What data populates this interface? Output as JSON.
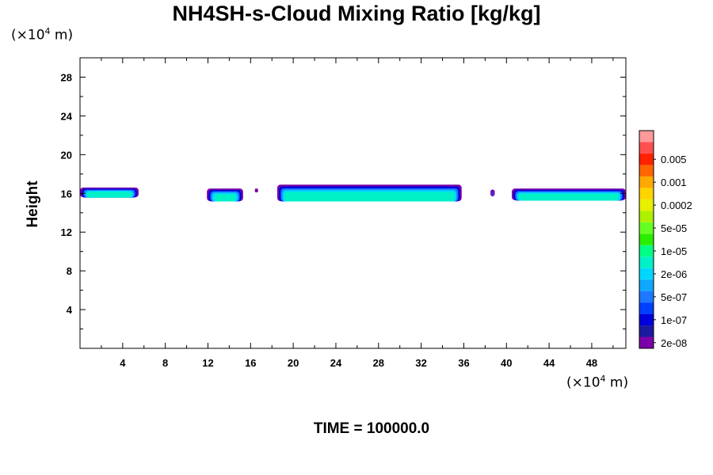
{
  "chart_data": {
    "type": "heatmap",
    "title": "NH4SH-s-Cloud Mixing Ratio [kg/kg]",
    "ylabel": "Height",
    "xlabel": "",
    "x_unit": {
      "prefix": "(×10",
      "exp": "4",
      "suffix": " m)"
    },
    "y_unit": {
      "prefix": "(×10",
      "exp": "4",
      "suffix": " m)"
    },
    "xlim": [
      0,
      51.2
    ],
    "ylim": [
      0,
      30
    ],
    "x_ticks": [
      4,
      8,
      12,
      16,
      20,
      24,
      28,
      32,
      36,
      40,
      44,
      48
    ],
    "x_tick_labels": [
      "4",
      "8",
      "12",
      "16",
      "20",
      "24",
      "28",
      "32",
      "36",
      "40",
      "44",
      "48"
    ],
    "y_ticks": [
      4,
      8,
      12,
      16,
      20,
      24,
      28
    ],
    "y_tick_labels": [
      "4",
      "8",
      "12",
      "16",
      "20",
      "24",
      "28"
    ],
    "colorbar": {
      "colors": [
        "#7b00a8",
        "#1a1aa0",
        "#0000dd",
        "#0040ff",
        "#1e78ff",
        "#0ea8ff",
        "#00d7ff",
        "#00f0c8",
        "#00ff84",
        "#2aee00",
        "#66ff22",
        "#aef000",
        "#e6f000",
        "#ffd400",
        "#ffaa00",
        "#ff6600",
        "#ff2200",
        "#ff5050",
        "#ff9a9a"
      ],
      "labels": [
        "2e-08",
        "1e-07",
        "5e-07",
        "2e-06",
        "1e-05",
        "5e-05",
        "0.0002",
        "0.001",
        "0.005"
      ],
      "label_positions": [
        0,
        2,
        4,
        6,
        8,
        10,
        12,
        14,
        16
      ]
    },
    "cloud_layers": [
      {
        "x_start": 0.0,
        "x_end": 5.5,
        "y_bottom": 15.6,
        "y_top": 16.6,
        "max_level": "2e-06"
      },
      {
        "x_start": 11.9,
        "x_end": 15.3,
        "y_bottom": 15.2,
        "y_top": 16.5,
        "max_level": "2e-06"
      },
      {
        "x_start": 16.4,
        "x_end": 16.7,
        "y_bottom": 16.1,
        "y_top": 16.5,
        "max_level": "2e-08"
      },
      {
        "x_start": 18.5,
        "x_end": 35.8,
        "y_bottom": 15.2,
        "y_top": 16.9,
        "max_level": "2e-06"
      },
      {
        "x_start": 38.5,
        "x_end": 38.9,
        "y_bottom": 15.7,
        "y_top": 16.4,
        "max_level": "1e-07"
      },
      {
        "x_start": 40.5,
        "x_end": 51.2,
        "y_bottom": 15.3,
        "y_top": 16.5,
        "max_level": "2e-06"
      }
    ]
  },
  "footer": {
    "time_label": "TIME = 100000.0"
  }
}
